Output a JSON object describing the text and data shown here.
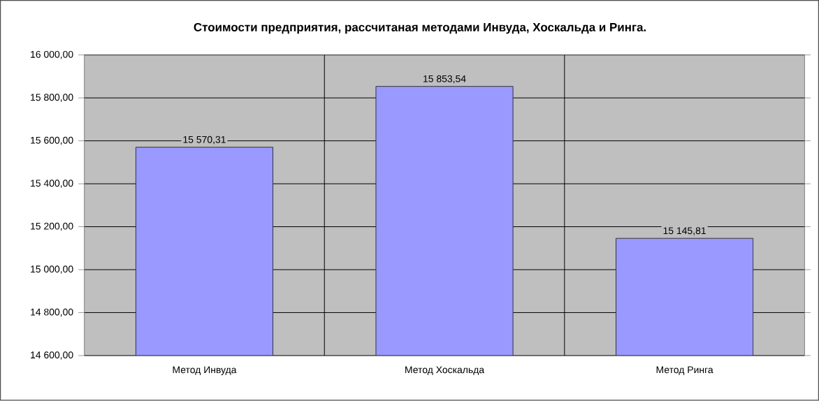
{
  "chart_data": {
    "type": "bar",
    "title": "Стоимости предприятия, рассчитаная методами Инвуда, Хоскальда и Ринга.",
    "categories": [
      "Метод Инвуда",
      "Метод Хоскальда",
      "Метод Ринга"
    ],
    "values": [
      15570.31,
      15853.54,
      15145.81
    ],
    "value_labels": [
      "15 570,31",
      "15 853,54",
      "15 145,81"
    ],
    "color": "#9999ff",
    "ylim": [
      14600,
      16000
    ],
    "yticks": [
      {
        "value": 14600,
        "label": "14 600,00"
      },
      {
        "value": 14800,
        "label": "14 800,00"
      },
      {
        "value": 15000,
        "label": "15 000,00"
      },
      {
        "value": 15200,
        "label": "15 200,00"
      },
      {
        "value": 15400,
        "label": "15 400,00"
      },
      {
        "value": 15600,
        "label": "15 600,00"
      },
      {
        "value": 15800,
        "label": "15 800,00"
      },
      {
        "value": 16000,
        "label": "16 000,00"
      }
    ],
    "grid": true
  }
}
